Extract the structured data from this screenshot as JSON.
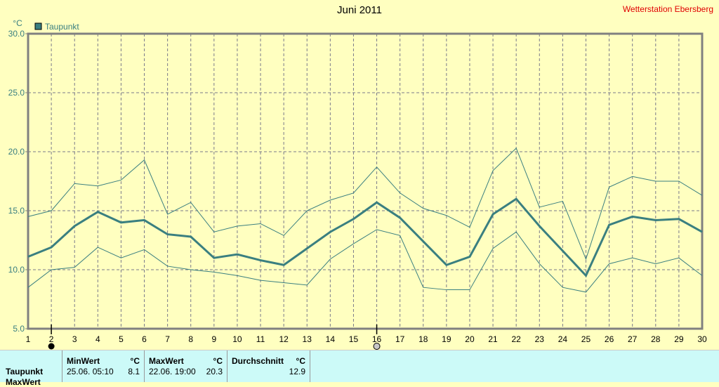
{
  "header": {
    "title": "Juni 2011",
    "station": "Wetterstation Ebersberg"
  },
  "colors": {
    "series": "#3a7f80",
    "grid": "#7a7a8a",
    "axis": "#808080",
    "axis_text": "#3a7f80",
    "background": "#ffffc0",
    "panel": "#ccfaf8",
    "station": "#e00000"
  },
  "chart_data": {
    "type": "line",
    "title": "Juni 2011",
    "ylabel": "°C",
    "xlim": [
      1,
      30
    ],
    "ylim": [
      5,
      30
    ],
    "yticks": [
      "5.0",
      "10.0",
      "15.0",
      "20.0",
      "25.0",
      "30.0"
    ],
    "x": [
      1,
      2,
      3,
      4,
      5,
      6,
      7,
      8,
      9,
      10,
      11,
      12,
      13,
      14,
      15,
      16,
      17,
      18,
      19,
      20,
      21,
      22,
      23,
      24,
      25,
      26,
      27,
      28,
      29,
      30
    ],
    "grid": true,
    "legend": {
      "position": "top-left",
      "entries": [
        "Taupunkt"
      ]
    },
    "markers": {
      "filled_day": 2,
      "hollow_day": 16
    },
    "series": [
      {
        "name": "Taupunkt",
        "role": "mean",
        "values": [
          11.1,
          11.9,
          13.7,
          14.9,
          14.0,
          14.2,
          13.0,
          12.8,
          11.0,
          11.3,
          10.8,
          10.4,
          11.8,
          13.2,
          14.3,
          15.7,
          14.4,
          12.4,
          10.4,
          11.1,
          14.7,
          16.0,
          13.7,
          11.6,
          9.5,
          13.8,
          14.5,
          14.2,
          14.3,
          13.2
        ]
      },
      {
        "role": "max",
        "values": [
          14.5,
          15.0,
          17.3,
          17.1,
          17.6,
          19.3,
          14.7,
          15.7,
          13.2,
          13.7,
          13.9,
          12.9,
          15.0,
          15.9,
          16.5,
          18.7,
          16.5,
          15.2,
          14.6,
          13.6,
          18.4,
          20.3,
          15.3,
          15.8,
          10.9,
          17.0,
          17.9,
          17.5,
          17.5,
          16.3
        ]
      },
      {
        "role": "min",
        "values": [
          8.5,
          10.0,
          10.2,
          11.9,
          11.0,
          11.7,
          10.3,
          10.0,
          9.8,
          9.5,
          9.1,
          8.9,
          8.7,
          10.9,
          12.2,
          13.4,
          12.9,
          8.5,
          8.3,
          8.3,
          11.8,
          13.2,
          10.5,
          8.5,
          8.1,
          10.5,
          11.0,
          10.5,
          11.0,
          9.5
        ]
      }
    ]
  },
  "stats": {
    "rows": [
      "Taupunkt",
      "MaxWert"
    ],
    "min": {
      "header": "MinWert",
      "unit": "°C",
      "time": "25.06.  05:10",
      "value": "8.1"
    },
    "max": {
      "header": "MaxWert",
      "unit": "°C",
      "time": "22.06.  19:00",
      "value": "20.3"
    },
    "avg": {
      "header": "Durchschnitt",
      "unit": "°C",
      "value": "12.9"
    }
  }
}
